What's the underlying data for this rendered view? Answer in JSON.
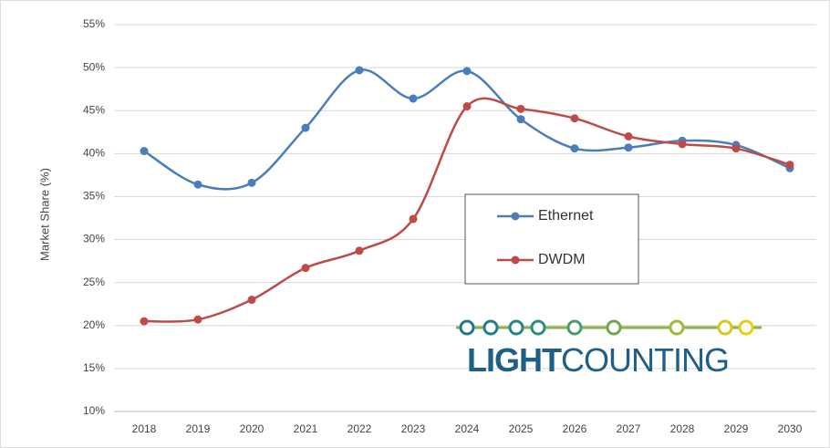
{
  "chart_data": {
    "type": "line",
    "y_label": "Market Share (%)",
    "categories": [
      "2018",
      "2019",
      "2020",
      "2021",
      "2022",
      "2023",
      "2024",
      "2025",
      "2026",
      "2027",
      "2028",
      "2029",
      "2030"
    ],
    "series": [
      {
        "name": "Ethernet",
        "color": "#4a7ebb",
        "values": [
          40.3,
          36.4,
          36.6,
          43.0,
          49.7,
          46.4,
          49.6,
          44.0,
          40.6,
          40.7,
          41.5,
          41.0,
          38.3
        ]
      },
      {
        "name": "DWDM",
        "color": "#be4b48",
        "values": [
          20.5,
          20.7,
          23.0,
          26.7,
          28.7,
          32.4,
          45.5,
          45.2,
          44.1,
          42.0,
          41.1,
          40.6,
          38.7
        ]
      }
    ],
    "ylim": [
      10,
      55
    ],
    "yticks": [
      {
        "value": 10,
        "label": "10%"
      },
      {
        "value": 15,
        "label": "15%"
      },
      {
        "value": 20,
        "label": "20%"
      },
      {
        "value": 25,
        "label": "25%"
      },
      {
        "value": 30,
        "label": "30%"
      },
      {
        "value": 35,
        "label": "35%"
      },
      {
        "value": 40,
        "label": "40%"
      },
      {
        "value": 45,
        "label": "45%"
      },
      {
        "value": 50,
        "label": "50%"
      },
      {
        "value": 55,
        "label": "55%"
      }
    ],
    "grid": true,
    "smooth": true,
    "logo": {
      "bold": "LIGHT",
      "regular": "COUNTING"
    }
  }
}
